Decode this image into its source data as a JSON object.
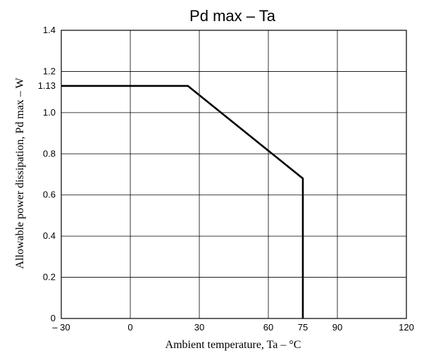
{
  "chart_data": {
    "type": "line",
    "title": "Pd max  –  Ta",
    "xlabel": "Ambient temperature,  Ta  –  °C",
    "ylabel": "Allowable power dissipation,  Pd max  –  W",
    "xlim": [
      -30,
      120
    ],
    "ylim": [
      0,
      1.4
    ],
    "x_ticks": [
      -30,
      0,
      30,
      60,
      75,
      90,
      120
    ],
    "x_tick_labels": [
      "– 30",
      "0",
      "30",
      "60",
      "75",
      "90",
      "120"
    ],
    "x_grid": [
      -30,
      0,
      30,
      60,
      90,
      120
    ],
    "y_ticks": [
      0,
      0.2,
      0.4,
      0.6,
      0.8,
      1.0,
      1.13,
      1.2,
      1.4
    ],
    "y_tick_labels": [
      "0",
      "0.2",
      "0.4",
      "0.6",
      "0.8",
      "1.0",
      "1.13",
      "1.2",
      "1.4"
    ],
    "y_grid": [
      0.2,
      0.4,
      0.6,
      0.8,
      1.0,
      1.2
    ],
    "grid": true,
    "series": [
      {
        "x": [
          -30,
          25,
          75,
          75
        ],
        "y": [
          1.13,
          1.13,
          0.68,
          0
        ]
      }
    ]
  }
}
